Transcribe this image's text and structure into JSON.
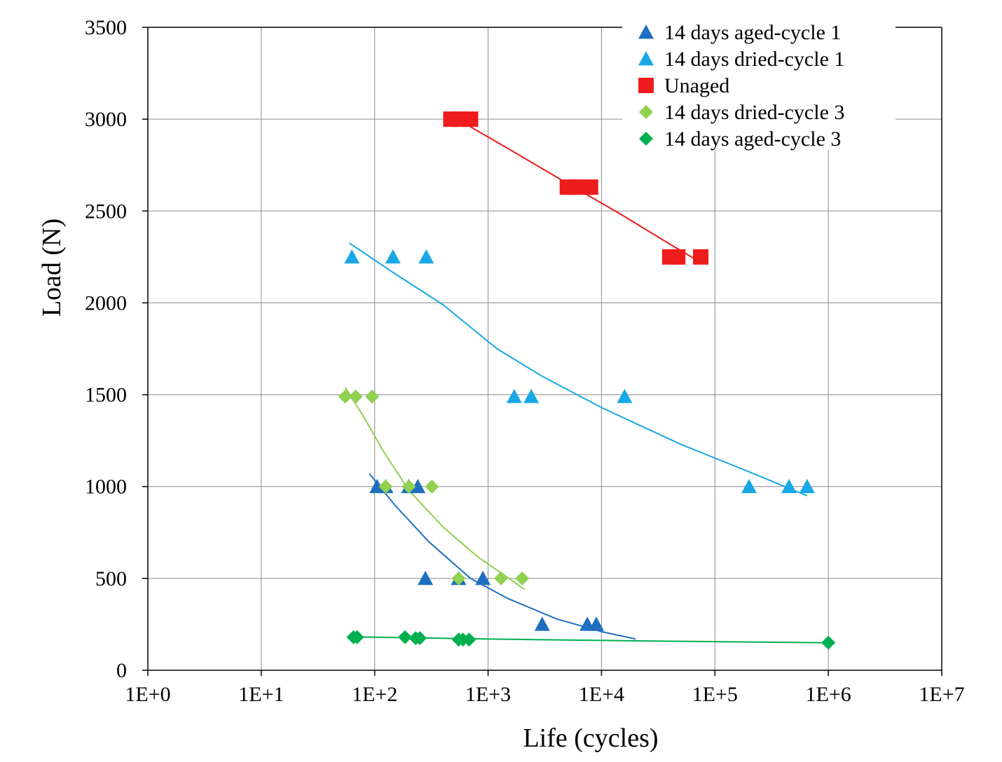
{
  "chart_data": {
    "type": "scatter",
    "xlabel": "Life (cycles)",
    "ylabel": "Load (N)",
    "xscale": "log",
    "xlim": [
      1,
      10000000
    ],
    "ylim": [
      0,
      3500
    ],
    "x_ticks": [
      {
        "value": 1,
        "label": "1E+0"
      },
      {
        "value": 10,
        "label": "1E+1"
      },
      {
        "value": 100,
        "label": "1E+2"
      },
      {
        "value": 1000,
        "label": "1E+3"
      },
      {
        "value": 10000,
        "label": "1E+4"
      },
      {
        "value": 100000,
        "label": "1E+5"
      },
      {
        "value": 1000000,
        "label": "1E+6"
      },
      {
        "value": 10000000,
        "label": "1E+7"
      }
    ],
    "y_ticks": [
      {
        "value": 0,
        "label": "0"
      },
      {
        "value": 500,
        "label": "500"
      },
      {
        "value": 1000,
        "label": "1000"
      },
      {
        "value": 1500,
        "label": "1500"
      },
      {
        "value": 2000,
        "label": "2000"
      },
      {
        "value": 2500,
        "label": "2500"
      },
      {
        "value": 3000,
        "label": "3000"
      },
      {
        "value": 3500,
        "label": "3500"
      }
    ],
    "grid": true,
    "legend_position": "top-right",
    "series": [
      {
        "name": "14 days aged-cycle 1",
        "marker": "triangle",
        "color": "#1f6fc0",
        "points": [
          {
            "x": 105,
            "y": 1000
          },
          {
            "x": 125,
            "y": 1000
          },
          {
            "x": 200,
            "y": 1000
          },
          {
            "x": 240,
            "y": 1000
          },
          {
            "x": 280,
            "y": 500
          },
          {
            "x": 550,
            "y": 500
          },
          {
            "x": 900,
            "y": 500
          },
          {
            "x": 3000,
            "y": 250
          },
          {
            "x": 7500,
            "y": 250
          },
          {
            "x": 9000,
            "y": 250
          }
        ],
        "trend": [
          {
            "x": 90,
            "y": 1070
          },
          {
            "x": 150,
            "y": 900
          },
          {
            "x": 300,
            "y": 700
          },
          {
            "x": 700,
            "y": 500
          },
          {
            "x": 1500,
            "y": 390
          },
          {
            "x": 4000,
            "y": 280
          },
          {
            "x": 10000,
            "y": 210
          },
          {
            "x": 20000,
            "y": 170
          }
        ]
      },
      {
        "name": "14 days dried-cycle 1",
        "marker": "triangle",
        "color": "#19a8e6",
        "points": [
          {
            "x": 63,
            "y": 2250
          },
          {
            "x": 145,
            "y": 2250
          },
          {
            "x": 285,
            "y": 2250
          },
          {
            "x": 1700,
            "y": 1490
          },
          {
            "x": 2400,
            "y": 1490
          },
          {
            "x": 16000,
            "y": 1490
          },
          {
            "x": 200000,
            "y": 1000
          },
          {
            "x": 450000,
            "y": 1000
          },
          {
            "x": 650000,
            "y": 1000
          }
        ],
        "trend": [
          {
            "x": 60,
            "y": 2325
          },
          {
            "x": 150,
            "y": 2160
          },
          {
            "x": 400,
            "y": 1990
          },
          {
            "x": 1200,
            "y": 1750
          },
          {
            "x": 3000,
            "y": 1600
          },
          {
            "x": 10000,
            "y": 1430
          },
          {
            "x": 50000,
            "y": 1230
          },
          {
            "x": 200000,
            "y": 1080
          },
          {
            "x": 650000,
            "y": 950
          }
        ]
      },
      {
        "name": "Unaged",
        "marker": "square",
        "color": "#ee1c1c",
        "points": [
          {
            "x": 470,
            "y": 3000
          },
          {
            "x": 560,
            "y": 3000
          },
          {
            "x": 700,
            "y": 3000
          },
          {
            "x": 5000,
            "y": 2630
          },
          {
            "x": 6000,
            "y": 2630
          },
          {
            "x": 8000,
            "y": 2630
          },
          {
            "x": 40000,
            "y": 2250
          },
          {
            "x": 47000,
            "y": 2250
          },
          {
            "x": 75000,
            "y": 2250
          }
        ],
        "trend": [
          {
            "x": 470,
            "y": 3020
          },
          {
            "x": 1500,
            "y": 2840
          },
          {
            "x": 5000,
            "y": 2650
          },
          {
            "x": 15000,
            "y": 2480
          },
          {
            "x": 40000,
            "y": 2320
          },
          {
            "x": 75000,
            "y": 2220
          }
        ]
      },
      {
        "name": "14 days dried-cycle 3",
        "marker": "diamond",
        "color": "#92d050",
        "points": [
          {
            "x": 55,
            "y": 1490
          },
          {
            "x": 68,
            "y": 1490
          },
          {
            "x": 95,
            "y": 1490
          },
          {
            "x": 125,
            "y": 1000
          },
          {
            "x": 200,
            "y": 1000
          },
          {
            "x": 320,
            "y": 1000
          },
          {
            "x": 550,
            "y": 500
          },
          {
            "x": 1300,
            "y": 500
          },
          {
            "x": 2000,
            "y": 500
          }
        ],
        "trend": [
          {
            "x": 55,
            "y": 1540
          },
          {
            "x": 80,
            "y": 1380
          },
          {
            "x": 120,
            "y": 1190
          },
          {
            "x": 200,
            "y": 980
          },
          {
            "x": 400,
            "y": 780
          },
          {
            "x": 800,
            "y": 620
          },
          {
            "x": 1300,
            "y": 530
          },
          {
            "x": 2100,
            "y": 440
          }
        ]
      },
      {
        "name": "14 days aged-cycle 3",
        "marker": "diamond",
        "color": "#00b050",
        "points": [
          {
            "x": 65,
            "y": 180
          },
          {
            "x": 70,
            "y": 180
          },
          {
            "x": 185,
            "y": 180
          },
          {
            "x": 230,
            "y": 175
          },
          {
            "x": 250,
            "y": 175
          },
          {
            "x": 550,
            "y": 167
          },
          {
            "x": 600,
            "y": 167
          },
          {
            "x": 680,
            "y": 167
          },
          {
            "x": 1000000,
            "y": 150
          }
        ],
        "trend": [
          {
            "x": 65,
            "y": 182
          },
          {
            "x": 1000,
            "y": 170
          },
          {
            "x": 20000,
            "y": 160
          },
          {
            "x": 1000000,
            "y": 150
          }
        ]
      }
    ]
  }
}
